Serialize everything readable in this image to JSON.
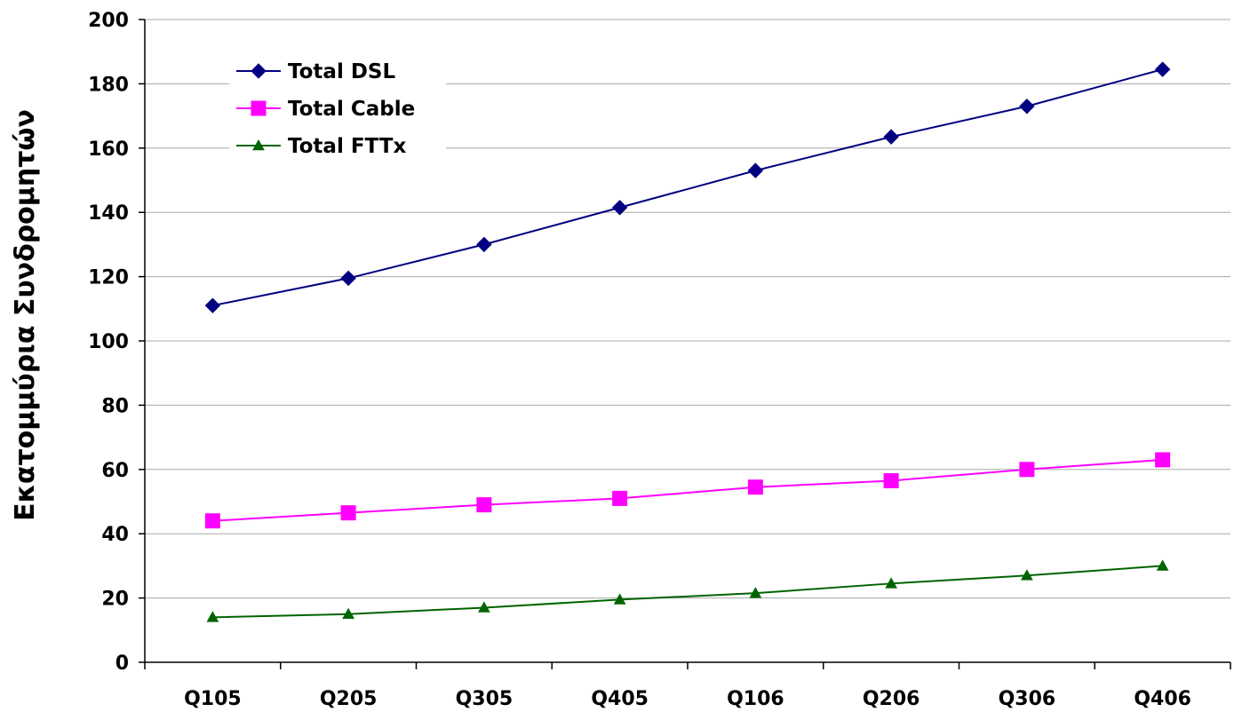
{
  "chart_data": {
    "type": "line",
    "title": "",
    "xlabel": "",
    "ylabel": "Εκατομμύρια Συνδρομητών",
    "categories": [
      "Q105",
      "Q205",
      "Q305",
      "Q405",
      "Q106",
      "Q206",
      "Q306",
      "Q406"
    ],
    "ylim": [
      0,
      200
    ],
    "yticks": [
      0,
      20,
      40,
      60,
      80,
      100,
      120,
      140,
      160,
      180,
      200
    ],
    "grid": "horizontal",
    "legend_position": "top-left",
    "series": [
      {
        "name": "Total DSL",
        "color": "#000080",
        "marker": "diamond",
        "values": [
          111,
          119.5,
          130,
          141.5,
          153,
          163.5,
          173,
          184.5
        ]
      },
      {
        "name": "Total Cable",
        "color": "#ff00ff",
        "marker": "square",
        "values": [
          44,
          46.5,
          49,
          51,
          54.5,
          56.5,
          60,
          63
        ]
      },
      {
        "name": "Total FTTx",
        "color": "#006400",
        "marker": "triangle",
        "values": [
          14,
          15,
          17,
          19.5,
          21.5,
          24.5,
          27,
          30
        ]
      }
    ]
  }
}
